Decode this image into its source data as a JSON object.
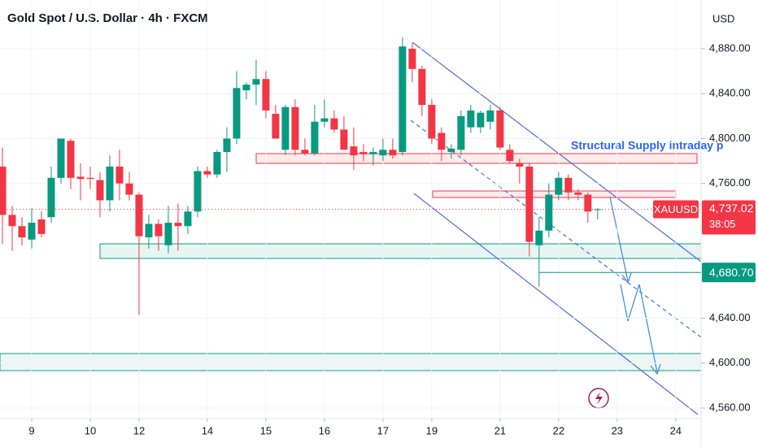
{
  "chart_data": {
    "type": "candlestick",
    "title": "Gold Spot / U.S. Dollar · 4h · FXCM",
    "currency": "USD",
    "annotation": "Structural Supply intraday p",
    "up_color": "#089981",
    "down_color": "#f23645",
    "x": [
      0,
      1,
      2,
      3,
      4,
      5,
      6,
      7,
      8,
      9,
      10,
      11,
      12,
      13,
      14,
      15,
      16,
      17,
      18,
      19,
      20,
      21,
      22,
      23,
      24,
      25,
      26,
      27,
      28,
      29,
      30,
      31,
      32,
      33,
      34,
      35,
      36,
      37,
      38,
      39,
      40,
      41,
      42,
      43,
      44,
      45,
      46,
      47,
      48,
      49,
      50,
      51,
      52,
      53,
      54,
      55,
      56,
      57,
      58,
      59,
      60,
      61
    ],
    "open": [
      4775,
      4732,
      4722,
      4710,
      4728,
      4730,
      4765,
      4798,
      4766,
      4765,
      4763,
      4745,
      4775,
      4760,
      4750,
      4712,
      4724,
      4705,
      4725,
      4722,
      4735,
      4771,
      4768,
      4788,
      4800,
      4843,
      4848,
      4853,
      4822,
      4790,
      4828,
      4790,
      4787,
      4815,
      4818,
      4808,
      4793,
      4788,
      4786,
      4785,
      4790,
      4788,
      4880,
      4862,
      4830,
      4805,
      4788,
      4790,
      4810,
      4810,
      4815,
      4825,
      4790,
      4778,
      4775,
      4705,
      4718,
      4750,
      4765,
      4752,
      4750,
      4737
    ],
    "high": [
      4792,
      4740,
      4730,
      4738,
      4735,
      4775,
      4800,
      4800,
      4778,
      4775,
      4770,
      4785,
      4790,
      4770,
      4752,
      4732,
      4728,
      4740,
      4742,
      4740,
      4775,
      4775,
      4790,
      4810,
      4860,
      4850,
      4870,
      4860,
      4830,
      4830,
      4835,
      4800,
      4830,
      4835,
      4825,
      4820,
      4810,
      4795,
      4792,
      4800,
      4800,
      4890,
      4885,
      4865,
      4835,
      4810,
      4795,
      4825,
      4830,
      4825,
      4830,
      4828,
      4795,
      4782,
      4778,
      4730,
      4760,
      4770,
      4768,
      4755,
      4752,
      4738
    ],
    "low": [
      4706,
      4700,
      4705,
      4702,
      4712,
      4725,
      4760,
      4755,
      4745,
      4755,
      4730,
      4735,
      4745,
      4745,
      4643,
      4702,
      4700,
      4698,
      4700,
      4715,
      4730,
      4765,
      4765,
      4770,
      4795,
      4835,
      4830,
      4818,
      4800,
      4785,
      4785,
      4785,
      4785,
      4810,
      4805,
      4790,
      4772,
      4780,
      4776,
      4780,
      4782,
      4785,
      4850,
      4820,
      4795,
      4780,
      4782,
      4785,
      4805,
      4805,
      4808,
      4790,
      4778,
      4760,
      4695,
      4668,
      4712,
      4745,
      4745,
      4745,
      4725,
      4728
    ],
    "close": [
      4732,
      4722,
      4712,
      4725,
      4715,
      4765,
      4800,
      4765,
      4764,
      4764,
      4745,
      4775,
      4760,
      4750,
      4713,
      4724,
      4713,
      4725,
      4722,
      4735,
      4771,
      4768,
      4788,
      4800,
      4845,
      4848,
      4853,
      4825,
      4800,
      4828,
      4790,
      4787,
      4815,
      4818,
      4808,
      4790,
      4785,
      4786,
      4788,
      4790,
      4785,
      4882,
      4862,
      4830,
      4800,
      4790,
      4791,
      4820,
      4825,
      4823,
      4825,
      4792,
      4780,
      4775,
      4708,
      4718,
      4750,
      4765,
      4752,
      4750,
      4735,
      4737.02
    ],
    "xlim": [
      -0.25,
      71.6
    ],
    "xticks": [
      {
        "value": 3,
        "label": "9"
      },
      {
        "value": 9,
        "label": "10"
      },
      {
        "value": 14,
        "label": "12"
      },
      {
        "value": 21,
        "label": "14"
      },
      {
        "value": 27,
        "label": "15"
      },
      {
        "value": 33,
        "label": "16"
      },
      {
        "value": 39,
        "label": "17"
      },
      {
        "value": 44,
        "label": "19"
      },
      {
        "value": 51,
        "label": "21"
      },
      {
        "value": 57,
        "label": "22"
      },
      {
        "value": 63,
        "label": "23"
      },
      {
        "value": 69,
        "label": "24"
      }
    ],
    "ylim": [
      4550.6,
      4923.4
    ],
    "yticks": [
      {
        "value": 4880,
        "label": "4,880.00"
      },
      {
        "value": 4840,
        "label": "4,840.00"
      },
      {
        "value": 4800,
        "label": "4,800.00"
      },
      {
        "value": 4760,
        "label": "4,760.00"
      },
      {
        "value": 4640,
        "label": "4,640.00"
      },
      {
        "value": 4600,
        "label": "4,600.00"
      },
      {
        "value": 4560,
        "label": "4,560.00"
      }
    ],
    "last_price": {
      "symbol": "XAUUSD",
      "value": 4737.02,
      "label": "4,737.02",
      "countdown": "38:05"
    },
    "price_line": {
      "value": 4680.7,
      "label": "4,680.70"
    }
  }
}
